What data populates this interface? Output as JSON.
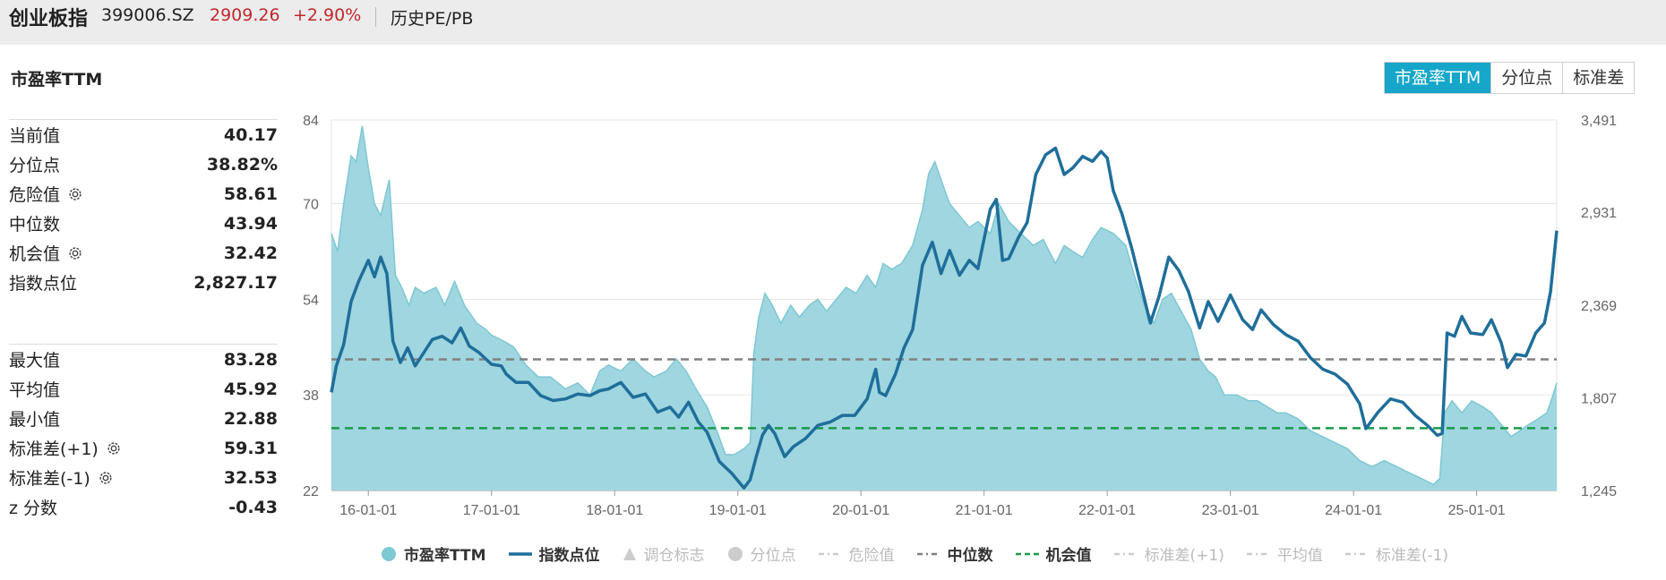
{
  "header": {
    "name": "创业板指",
    "code": "399006.SZ",
    "price": "2909.26",
    "change": "+2.90%",
    "page": "历史PE/PB"
  },
  "panel": {
    "title": "市盈率TTM",
    "tabs": [
      {
        "label": "市盈率TTM",
        "active": true
      },
      {
        "label": "分位点",
        "active": false
      },
      {
        "label": "标准差",
        "active": false
      }
    ]
  },
  "stats_group1": [
    {
      "label": "当前值",
      "value": "40.17",
      "gear": false
    },
    {
      "label": "分位点",
      "value": "38.82%",
      "gear": false
    },
    {
      "label": "危险值",
      "value": "58.61",
      "gear": true
    },
    {
      "label": "中位数",
      "value": "43.94",
      "gear": false
    },
    {
      "label": "机会值",
      "value": "32.42",
      "gear": true
    },
    {
      "label": "指数点位",
      "value": "2,827.17",
      "gear": false
    }
  ],
  "stats_group2": [
    {
      "label": "最大值",
      "value": "83.28",
      "gear": false
    },
    {
      "label": "平均值",
      "value": "45.92",
      "gear": false
    },
    {
      "label": "最小值",
      "value": "22.88",
      "gear": false
    },
    {
      "label": "标准差(+1)",
      "value": "59.31",
      "gear": true
    },
    {
      "label": "标准差(-1)",
      "value": "32.53",
      "gear": true
    },
    {
      "label": "z 分数",
      "value": "-0.43",
      "gear": false
    }
  ],
  "chart_data": {
    "type": "area",
    "x_ticks": [
      "16-01-01",
      "17-01-01",
      "18-01-01",
      "19-01-01",
      "20-01-01",
      "21-01-01",
      "22-01-01",
      "23-01-01",
      "24-01-01",
      "25-01-01"
    ],
    "x_range": [
      2015.7,
      2025.65
    ],
    "y_left_ticks": [
      "22",
      "38",
      "54",
      "70",
      "84"
    ],
    "y_left_range": [
      22,
      84
    ],
    "y_right_ticks": [
      "1,245",
      "1,807",
      "2,369",
      "2,931",
      "3,491"
    ],
    "y_right_range": [
      1245,
      3491
    ],
    "median": 43.94,
    "opportunity": 32.42,
    "colors": {
      "pe_fill": "#9fd6df",
      "pe_line": "#7ec8d3",
      "index_line": "#1f6e9a",
      "median": "#808080",
      "opportunity": "#1a9a4a"
    },
    "series": [
      {
        "name": "市盈率TTM",
        "axis": "left",
        "points": [
          [
            2015.7,
            65
          ],
          [
            2015.75,
            62
          ],
          [
            2015.8,
            70
          ],
          [
            2015.86,
            78
          ],
          [
            2015.9,
            77
          ],
          [
            2015.95,
            83
          ],
          [
            2016.0,
            76
          ],
          [
            2016.05,
            70
          ],
          [
            2016.1,
            68
          ],
          [
            2016.17,
            74
          ],
          [
            2016.22,
            58
          ],
          [
            2016.27,
            56
          ],
          [
            2016.33,
            53
          ],
          [
            2016.38,
            56
          ],
          [
            2016.45,
            55
          ],
          [
            2016.55,
            56
          ],
          [
            2016.62,
            53
          ],
          [
            2016.7,
            57
          ],
          [
            2016.78,
            53
          ],
          [
            2016.88,
            50
          ],
          [
            2016.95,
            49
          ],
          [
            2017.0,
            48
          ],
          [
            2017.1,
            47
          ],
          [
            2017.18,
            46
          ],
          [
            2017.28,
            43
          ],
          [
            2017.38,
            41
          ],
          [
            2017.48,
            41
          ],
          [
            2017.6,
            39
          ],
          [
            2017.7,
            40
          ],
          [
            2017.8,
            38
          ],
          [
            2017.88,
            42
          ],
          [
            2017.95,
            43
          ],
          [
            2018.05,
            42
          ],
          [
            2018.15,
            44
          ],
          [
            2018.25,
            42
          ],
          [
            2018.32,
            41
          ],
          [
            2018.42,
            42
          ],
          [
            2018.5,
            44
          ],
          [
            2018.58,
            42
          ],
          [
            2018.66,
            39
          ],
          [
            2018.75,
            36
          ],
          [
            2018.83,
            32
          ],
          [
            2018.9,
            28
          ],
          [
            2018.97,
            28
          ],
          [
            2019.05,
            29
          ],
          [
            2019.1,
            30
          ],
          [
            2019.13,
            45
          ],
          [
            2019.17,
            51
          ],
          [
            2019.22,
            55
          ],
          [
            2019.28,
            53
          ],
          [
            2019.35,
            50
          ],
          [
            2019.43,
            53
          ],
          [
            2019.5,
            51
          ],
          [
            2019.58,
            53
          ],
          [
            2019.65,
            54
          ],
          [
            2019.72,
            52
          ],
          [
            2019.8,
            54
          ],
          [
            2019.88,
            56
          ],
          [
            2019.96,
            55
          ],
          [
            2020.05,
            58
          ],
          [
            2020.12,
            56
          ],
          [
            2020.18,
            60
          ],
          [
            2020.25,
            59
          ],
          [
            2020.33,
            60
          ],
          [
            2020.42,
            63
          ],
          [
            2020.5,
            69
          ],
          [
            2020.55,
            75
          ],
          [
            2020.6,
            77
          ],
          [
            2020.65,
            74
          ],
          [
            2020.72,
            70
          ],
          [
            2020.8,
            68
          ],
          [
            2020.88,
            66
          ],
          [
            2020.95,
            67
          ],
          [
            2021.05,
            65
          ],
          [
            2021.12,
            70
          ],
          [
            2021.2,
            67
          ],
          [
            2021.3,
            65
          ],
          [
            2021.4,
            63
          ],
          [
            2021.48,
            64
          ],
          [
            2021.58,
            60
          ],
          [
            2021.65,
            63
          ],
          [
            2021.72,
            62
          ],
          [
            2021.8,
            61
          ],
          [
            2021.88,
            64
          ],
          [
            2021.95,
            66
          ],
          [
            2022.05,
            65
          ],
          [
            2022.15,
            63
          ],
          [
            2022.22,
            58
          ],
          [
            2022.3,
            53
          ],
          [
            2022.38,
            50
          ],
          [
            2022.45,
            54
          ],
          [
            2022.52,
            55
          ],
          [
            2022.6,
            52
          ],
          [
            2022.68,
            49
          ],
          [
            2022.75,
            44
          ],
          [
            2022.82,
            42
          ],
          [
            2022.88,
            41
          ],
          [
            2022.95,
            38
          ],
          [
            2023.05,
            38
          ],
          [
            2023.15,
            37
          ],
          [
            2023.22,
            37
          ],
          [
            2023.3,
            36
          ],
          [
            2023.38,
            35
          ],
          [
            2023.45,
            35
          ],
          [
            2023.55,
            34
          ],
          [
            2023.65,
            32
          ],
          [
            2023.75,
            31
          ],
          [
            2023.85,
            30
          ],
          [
            2023.95,
            29
          ],
          [
            2024.05,
            27
          ],
          [
            2024.15,
            26
          ],
          [
            2024.25,
            27
          ],
          [
            2024.35,
            26
          ],
          [
            2024.45,
            25
          ],
          [
            2024.55,
            24
          ],
          [
            2024.65,
            23
          ],
          [
            2024.7,
            24
          ],
          [
            2024.74,
            35
          ],
          [
            2024.8,
            37
          ],
          [
            2024.88,
            35
          ],
          [
            2024.96,
            37
          ],
          [
            2025.05,
            36
          ],
          [
            2025.12,
            35
          ],
          [
            2025.2,
            33
          ],
          [
            2025.28,
            31
          ],
          [
            2025.35,
            32
          ],
          [
            2025.42,
            33
          ],
          [
            2025.5,
            34
          ],
          [
            2025.57,
            35
          ],
          [
            2025.62,
            38
          ],
          [
            2025.65,
            40
          ]
        ]
      },
      {
        "name": "指数点位",
        "axis": "right",
        "points": [
          [
            2015.7,
            1840
          ],
          [
            2015.74,
            2000
          ],
          [
            2015.8,
            2130
          ],
          [
            2015.86,
            2390
          ],
          [
            2015.92,
            2510
          ],
          [
            2016.0,
            2640
          ],
          [
            2016.05,
            2540
          ],
          [
            2016.1,
            2660
          ],
          [
            2016.15,
            2560
          ],
          [
            2016.2,
            2150
          ],
          [
            2016.26,
            2020
          ],
          [
            2016.32,
            2110
          ],
          [
            2016.38,
            2000
          ],
          [
            2016.45,
            2080
          ],
          [
            2016.52,
            2160
          ],
          [
            2016.6,
            2180
          ],
          [
            2016.68,
            2140
          ],
          [
            2016.75,
            2230
          ],
          [
            2016.82,
            2120
          ],
          [
            2016.9,
            2080
          ],
          [
            2017.0,
            2010
          ],
          [
            2017.08,
            2000
          ],
          [
            2017.12,
            1950
          ],
          [
            2017.2,
            1900
          ],
          [
            2017.3,
            1900
          ],
          [
            2017.4,
            1820
          ],
          [
            2017.5,
            1790
          ],
          [
            2017.6,
            1800
          ],
          [
            2017.7,
            1830
          ],
          [
            2017.8,
            1820
          ],
          [
            2017.88,
            1850
          ],
          [
            2017.95,
            1860
          ],
          [
            2018.05,
            1900
          ],
          [
            2018.15,
            1810
          ],
          [
            2018.25,
            1830
          ],
          [
            2018.35,
            1720
          ],
          [
            2018.45,
            1750
          ],
          [
            2018.52,
            1690
          ],
          [
            2018.6,
            1780
          ],
          [
            2018.68,
            1660
          ],
          [
            2018.75,
            1600
          ],
          [
            2018.85,
            1420
          ],
          [
            2018.95,
            1350
          ],
          [
            2019.05,
            1260
          ],
          [
            2019.1,
            1310
          ],
          [
            2019.15,
            1450
          ],
          [
            2019.2,
            1580
          ],
          [
            2019.25,
            1640
          ],
          [
            2019.3,
            1590
          ],
          [
            2019.38,
            1450
          ],
          [
            2019.45,
            1510
          ],
          [
            2019.55,
            1560
          ],
          [
            2019.65,
            1640
          ],
          [
            2019.75,
            1660
          ],
          [
            2019.85,
            1700
          ],
          [
            2019.95,
            1700
          ],
          [
            2020.05,
            1800
          ],
          [
            2020.12,
            1980
          ],
          [
            2020.15,
            1840
          ],
          [
            2020.2,
            1820
          ],
          [
            2020.28,
            1950
          ],
          [
            2020.35,
            2110
          ],
          [
            2020.42,
            2220
          ],
          [
            2020.5,
            2610
          ],
          [
            2020.58,
            2750
          ],
          [
            2020.65,
            2560
          ],
          [
            2020.72,
            2700
          ],
          [
            2020.8,
            2550
          ],
          [
            2020.88,
            2640
          ],
          [
            2020.95,
            2590
          ],
          [
            2021.05,
            2950
          ],
          [
            2021.1,
            3010
          ],
          [
            2021.15,
            2640
          ],
          [
            2021.2,
            2650
          ],
          [
            2021.28,
            2780
          ],
          [
            2021.35,
            2870
          ],
          [
            2021.42,
            3160
          ],
          [
            2021.5,
            3280
          ],
          [
            2021.58,
            3320
          ],
          [
            2021.65,
            3160
          ],
          [
            2021.72,
            3200
          ],
          [
            2021.8,
            3270
          ],
          [
            2021.88,
            3240
          ],
          [
            2021.95,
            3300
          ],
          [
            2022.0,
            3260
          ],
          [
            2022.05,
            3060
          ],
          [
            2022.12,
            2920
          ],
          [
            2022.2,
            2710
          ],
          [
            2022.28,
            2470
          ],
          [
            2022.35,
            2260
          ],
          [
            2022.42,
            2420
          ],
          [
            2022.5,
            2660
          ],
          [
            2022.58,
            2580
          ],
          [
            2022.66,
            2450
          ],
          [
            2022.75,
            2230
          ],
          [
            2022.82,
            2390
          ],
          [
            2022.9,
            2270
          ],
          [
            2023.0,
            2430
          ],
          [
            2023.1,
            2280
          ],
          [
            2023.18,
            2220
          ],
          [
            2023.25,
            2340
          ],
          [
            2023.35,
            2250
          ],
          [
            2023.45,
            2190
          ],
          [
            2023.55,
            2150
          ],
          [
            2023.65,
            2050
          ],
          [
            2023.75,
            1980
          ],
          [
            2023.85,
            1950
          ],
          [
            2023.95,
            1890
          ],
          [
            2024.05,
            1770
          ],
          [
            2024.1,
            1620
          ],
          [
            2024.2,
            1720
          ],
          [
            2024.3,
            1800
          ],
          [
            2024.4,
            1780
          ],
          [
            2024.5,
            1700
          ],
          [
            2024.6,
            1640
          ],
          [
            2024.68,
            1580
          ],
          [
            2024.72,
            1590
          ],
          [
            2024.76,
            2200
          ],
          [
            2024.82,
            2180
          ],
          [
            2024.88,
            2300
          ],
          [
            2024.95,
            2200
          ],
          [
            2025.05,
            2190
          ],
          [
            2025.12,
            2280
          ],
          [
            2025.2,
            2140
          ],
          [
            2025.25,
            1990
          ],
          [
            2025.32,
            2070
          ],
          [
            2025.4,
            2060
          ],
          [
            2025.48,
            2200
          ],
          [
            2025.55,
            2260
          ],
          [
            2025.6,
            2450
          ],
          [
            2025.65,
            2820
          ]
        ]
      }
    ]
  },
  "legend": [
    {
      "label": "市盈率TTM",
      "type": "circle",
      "color": "#7ec8d3",
      "on": true
    },
    {
      "label": "指数点位",
      "type": "line",
      "color": "#1f6e9a",
      "on": true
    },
    {
      "label": "调仓标志",
      "type": "triangle",
      "color": "#ccc",
      "on": false
    },
    {
      "label": "分位点",
      "type": "circle",
      "color": "#ccc",
      "on": false
    },
    {
      "label": "危险值",
      "type": "dashdot",
      "color": "#ccc",
      "on": false
    },
    {
      "label": "中位数",
      "type": "dashdot",
      "color": "#808080",
      "on": true
    },
    {
      "label": "机会值",
      "type": "dash",
      "color": "#1a9a4a",
      "on": true
    },
    {
      "label": "标准差(+1)",
      "type": "dashdot",
      "color": "#ccc",
      "on": false
    },
    {
      "label": "平均值",
      "type": "dashdot",
      "color": "#ccc",
      "on": false
    },
    {
      "label": "标准差(-1)",
      "type": "dashdot",
      "color": "#ccc",
      "on": false
    }
  ]
}
